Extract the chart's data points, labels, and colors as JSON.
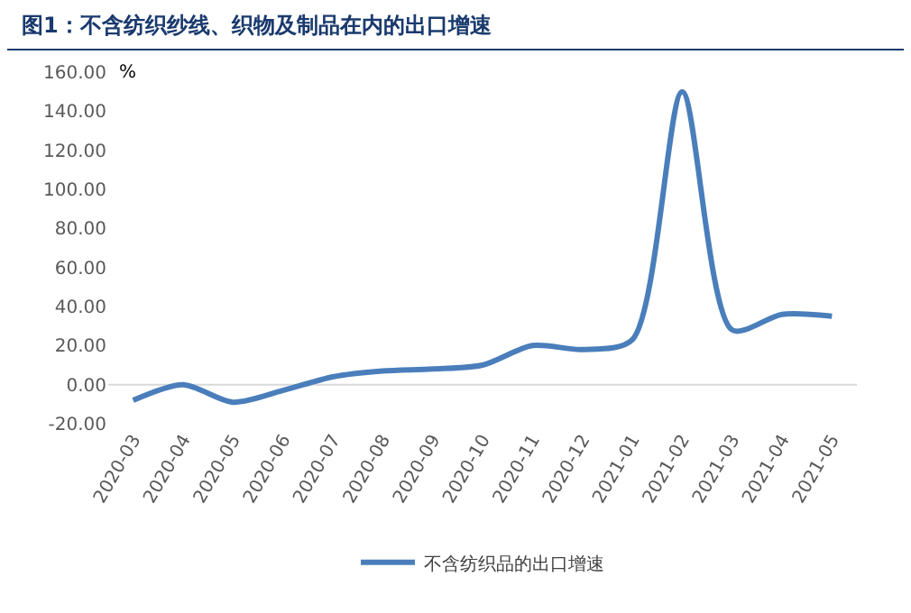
{
  "chart_data": {
    "type": "line",
    "title": "图1：不含纺织纱线、织物及制品在内的出口增速",
    "ylabel": "%",
    "categories": [
      "2020-03",
      "2020-04",
      "2020-05",
      "2020-06",
      "2020-07",
      "2020-08",
      "2020-09",
      "2020-10",
      "2020-11",
      "2020-12",
      "2021-01",
      "2021-02",
      "2021-03",
      "2021-04",
      "2021-05"
    ],
    "series": [
      {
        "name": "不含纺织品的出口增速",
        "color": "#4a7ebb",
        "values": [
          -8,
          0,
          -9,
          -3,
          4,
          7,
          8,
          10,
          20,
          18,
          23,
          150,
          28,
          36,
          35
        ]
      }
    ],
    "ylim": [
      -20,
      160
    ],
    "yticks": [
      {
        "value": -20,
        "label": "-20.00"
      },
      {
        "value": 0,
        "label": "0.00"
      },
      {
        "value": 20,
        "label": "20.00"
      },
      {
        "value": 40,
        "label": "40.00"
      },
      {
        "value": 60,
        "label": "60.00"
      },
      {
        "value": 80,
        "label": "80.00"
      },
      {
        "value": 100,
        "label": "100.00"
      },
      {
        "value": 120,
        "label": "120.00"
      },
      {
        "value": 140,
        "label": "140.00"
      },
      {
        "value": 160,
        "label": "160.00"
      }
    ],
    "ref_lines": [
      {
        "axis": "y",
        "value": 0,
        "color": "#d9d9d9"
      }
    ],
    "grid": false,
    "legend": "bottom",
    "line_style": "solid",
    "marker": "none"
  }
}
